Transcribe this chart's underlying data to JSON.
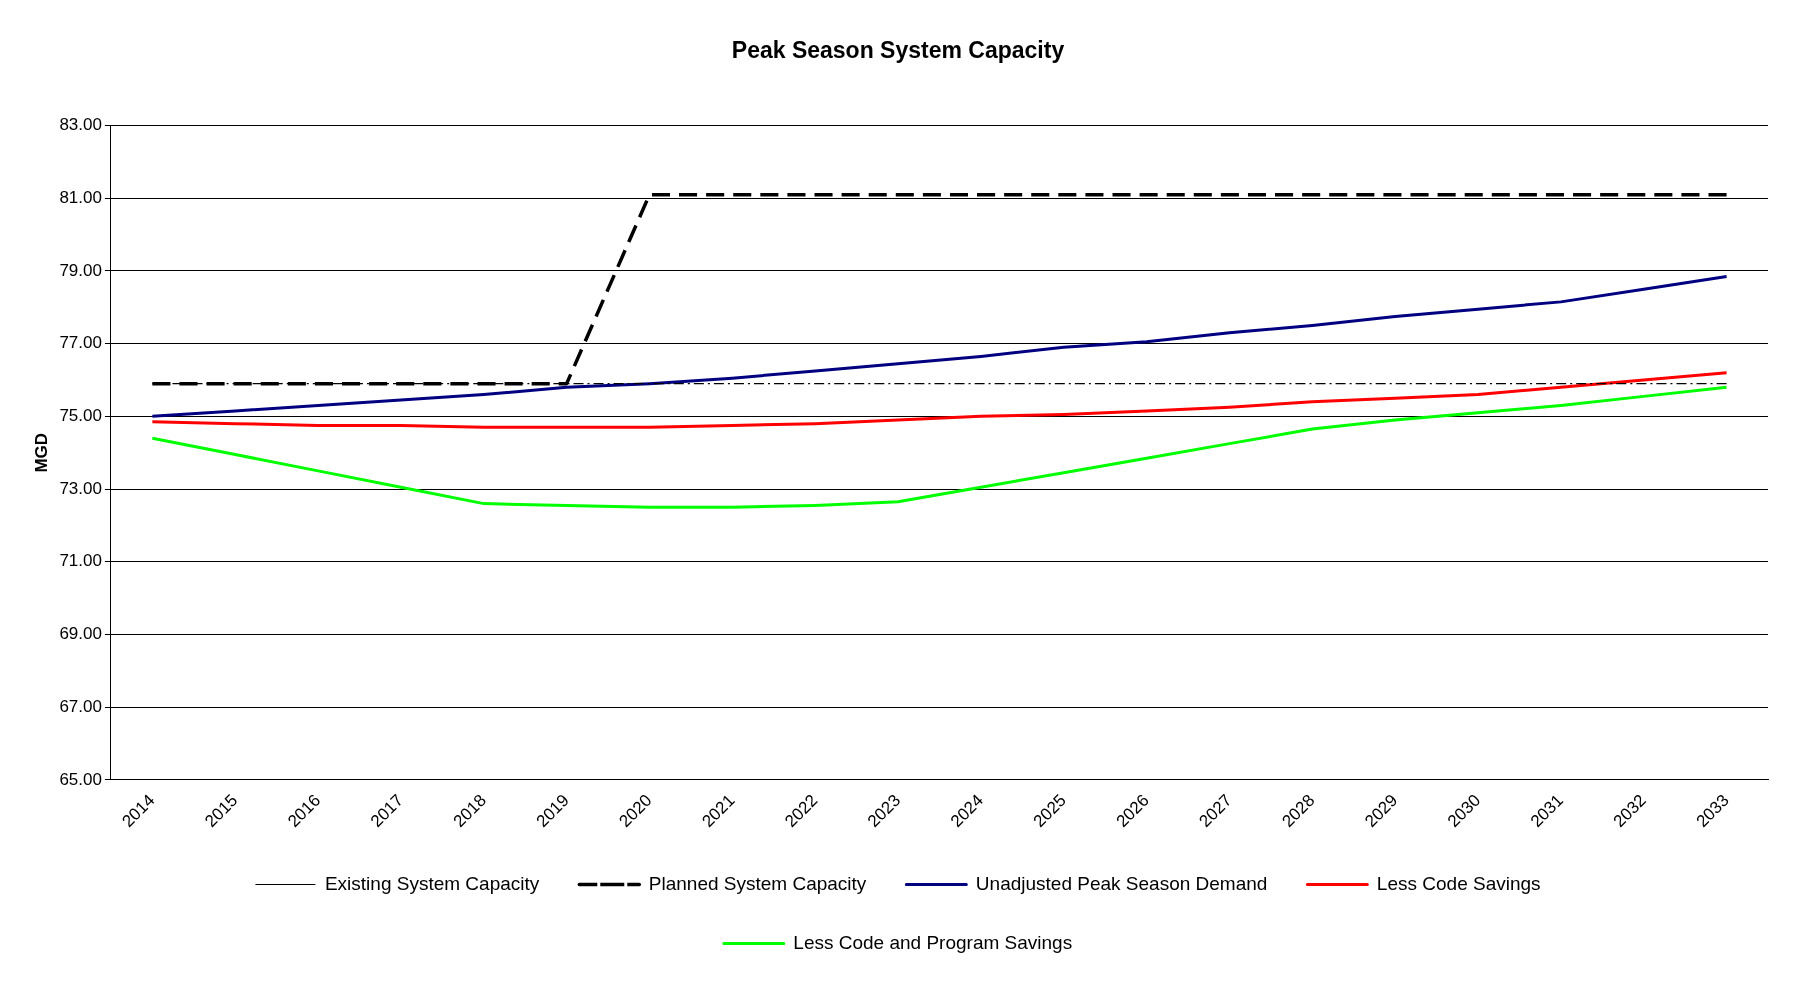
{
  "chart_data": {
    "type": "line",
    "title": "Peak Season System Capacity",
    "ylabel": "MGD",
    "categories": [
      "2014",
      "2015",
      "2016",
      "2017",
      "2018",
      "2019",
      "2020",
      "2021",
      "2022",
      "2023",
      "2024",
      "2025",
      "2026",
      "2027",
      "2028",
      "2029",
      "2030",
      "2031",
      "2032",
      "2033"
    ],
    "ylim": [
      65,
      83
    ],
    "yticks": [
      {
        "value": 65,
        "label": "65.00"
      },
      {
        "value": 67,
        "label": "67.00"
      },
      {
        "value": 69,
        "label": "69.00"
      },
      {
        "value": 71,
        "label": "71.00"
      },
      {
        "value": 73,
        "label": "73.00"
      },
      {
        "value": 75,
        "label": "75.00"
      },
      {
        "value": 77,
        "label": "77.00"
      },
      {
        "value": 79,
        "label": "79.00"
      },
      {
        "value": 81,
        "label": "81.00"
      },
      {
        "value": 83,
        "label": "83.00"
      }
    ],
    "grid": "y",
    "legend": "bottom",
    "marker": "none",
    "series": [
      {
        "name": "Existing System Capacity",
        "color": "#000000",
        "line_style": "dotted",
        "values": [
          75.9,
          75.9,
          75.9,
          75.9,
          75.9,
          75.9,
          75.9,
          75.9,
          75.9,
          75.9,
          75.9,
          75.9,
          75.9,
          75.9,
          75.9,
          75.9,
          75.9,
          75.9,
          75.9,
          75.9
        ]
      },
      {
        "name": "Planned System Capacity",
        "color": "#000000",
        "line_style": "dashed",
        "values": [
          75.9,
          75.9,
          75.9,
          75.9,
          75.9,
          75.9,
          81.1,
          81.1,
          81.1,
          81.1,
          81.1,
          81.1,
          81.1,
          81.1,
          81.1,
          81.1,
          81.1,
          81.1,
          81.1,
          81.1
        ]
      },
      {
        "name": "Unadjusted Peak Season Demand",
        "color": "#000080",
        "line_style": "solid",
        "values": [
          75.0,
          75.15,
          75.3,
          75.45,
          75.6,
          75.8,
          75.9,
          76.05,
          76.25,
          76.45,
          76.65,
          76.9,
          77.05,
          77.3,
          77.5,
          77.75,
          77.95,
          78.15,
          78.5,
          78.85
        ]
      },
      {
        "name": "Less Code Savings",
        "color": "#ff0000",
        "line_style": "solid",
        "values": [
          74.85,
          74.8,
          74.75,
          74.75,
          74.7,
          74.7,
          74.7,
          74.75,
          74.8,
          74.9,
          75.0,
          75.05,
          75.15,
          75.25,
          75.4,
          75.5,
          75.6,
          75.8,
          76.0,
          76.2
        ]
      },
      {
        "name": "Less Code and Program Savings",
        "color": "#00ff00",
        "line_style": "solid",
        "values": [
          74.4,
          73.95,
          73.5,
          73.05,
          72.6,
          72.55,
          72.5,
          72.5,
          72.55,
          72.65,
          73.05,
          73.45,
          73.85,
          74.25,
          74.65,
          74.9,
          75.1,
          75.3,
          75.55,
          75.8
        ]
      }
    ]
  }
}
